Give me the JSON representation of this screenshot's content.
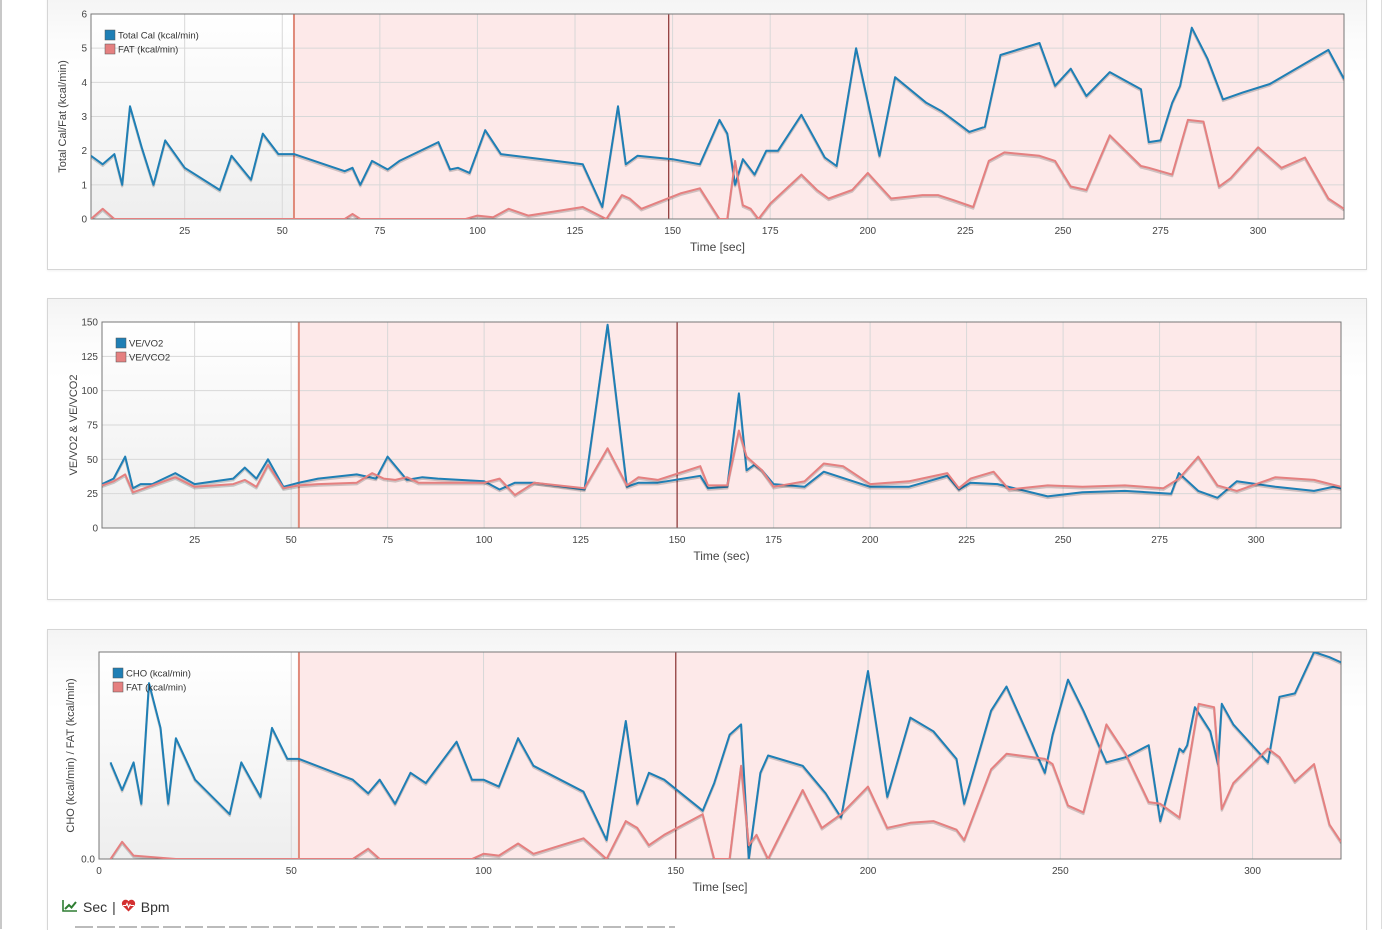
{
  "footer": {
    "sec_label": "Sec",
    "separator": "|",
    "bpm_label": "Bpm",
    "sec_icon": "trend-line-icon",
    "bpm_icon": "heart-pulse-icon"
  },
  "colors": {
    "blue": "#1f7fb5",
    "red": "#e58080",
    "zone_fill": "#fde9e9",
    "rest_fill": "#eeeeee",
    "zone_border": "#e08a7a",
    "marker": "#8a3030",
    "grid": "#d8d8d8"
  },
  "chart_data": [
    {
      "type": "line",
      "xlabel": "Time [sec]",
      "ylabel": "Total Cal/Fat (kcal/min)",
      "xlim": [
        1,
        322
      ],
      "ylim": [
        0,
        6
      ],
      "x_ticks": [
        25,
        50,
        75,
        100,
        125,
        150,
        175,
        200,
        225,
        250,
        275,
        300
      ],
      "y_ticks": [
        0,
        1,
        2,
        3,
        4,
        5,
        6
      ],
      "y_tick_labels": [
        "0",
        "1",
        "2",
        "3",
        "4",
        "5",
        "6"
      ],
      "legend_position": "top-left",
      "rest_zone": [
        1,
        53
      ],
      "exercise_zone_start": 53,
      "marker_x": 149,
      "series": [
        {
          "name": "Total Cal (kcal/min)",
          "color": "#1f7fb5",
          "x": [
            1,
            4,
            7,
            9,
            11,
            14,
            17,
            20,
            25,
            34,
            37,
            42,
            45,
            49,
            53,
            66,
            68,
            70,
            73,
            77,
            80,
            90,
            93,
            95,
            98,
            102,
            106,
            113,
            127,
            132,
            136,
            138,
            141,
            150,
            157,
            162,
            164,
            166,
            168,
            171,
            174,
            177,
            183,
            189,
            192,
            197,
            203,
            207,
            215,
            219,
            226,
            230,
            234,
            244,
            248,
            252,
            256,
            262,
            270,
            272,
            275,
            278,
            280,
            283,
            287,
            291,
            296,
            303,
            312,
            318,
            322
          ],
          "y": [
            1.85,
            1.6,
            1.9,
            1.0,
            3.3,
            2.1,
            1.0,
            2.3,
            1.5,
            0.85,
            1.85,
            1.15,
            2.5,
            1.9,
            1.9,
            1.4,
            1.5,
            1.0,
            1.7,
            1.45,
            1.7,
            2.25,
            1.45,
            1.5,
            1.35,
            2.6,
            1.9,
            1.8,
            1.6,
            0.35,
            3.3,
            1.6,
            1.85,
            1.75,
            1.6,
            2.9,
            2.5,
            1.0,
            1.75,
            1.3,
            2.0,
            2.0,
            3.05,
            1.8,
            1.55,
            5.0,
            1.85,
            4.15,
            3.4,
            3.15,
            2.55,
            2.7,
            4.8,
            5.15,
            3.9,
            4.4,
            3.6,
            4.3,
            3.8,
            2.25,
            2.3,
            3.4,
            3.9,
            5.6,
            4.7,
            3.5,
            3.7,
            3.95,
            4.55,
            4.95,
            4.1
          ]
        },
        {
          "name": "FAT (kcal/min)",
          "color": "#e58080",
          "x": [
            1,
            4,
            7,
            11,
            20,
            30,
            45,
            53,
            60,
            66,
            68,
            70,
            75,
            90,
            97,
            100,
            104,
            108,
            113,
            127,
            133,
            137,
            139,
            142,
            152,
            157,
            162,
            164,
            166,
            167,
            168,
            170,
            172,
            175,
            183,
            187,
            190,
            196,
            200,
            206,
            214,
            218,
            222,
            227,
            231,
            235,
            244,
            248,
            252,
            256,
            262,
            270,
            272,
            278,
            282,
            286,
            290,
            293,
            300,
            306,
            312,
            318,
            322
          ],
          "y": [
            0.0,
            0.3,
            0.0,
            0.0,
            0.0,
            0.0,
            0.0,
            0.0,
            0.0,
            0.0,
            0.15,
            0.0,
            0.0,
            0.0,
            0.0,
            0.1,
            0.05,
            0.3,
            0.1,
            0.35,
            0.0,
            0.7,
            0.6,
            0.3,
            0.75,
            0.9,
            0.0,
            0.0,
            1.7,
            1.0,
            0.4,
            0.3,
            0.0,
            0.45,
            1.3,
            0.85,
            0.6,
            0.85,
            1.35,
            0.6,
            0.7,
            0.7,
            0.55,
            0.35,
            1.7,
            1.95,
            1.85,
            1.7,
            0.95,
            0.85,
            2.45,
            1.55,
            1.5,
            1.3,
            2.9,
            2.85,
            0.95,
            1.2,
            2.1,
            1.5,
            1.8,
            0.6,
            0.3
          ]
        }
      ]
    },
    {
      "type": "line",
      "xlabel": "Time (sec)",
      "ylabel": "VE/VO2 & VE/VCO2",
      "xlim": [
        1,
        322
      ],
      "ylim": [
        0,
        150
      ],
      "x_ticks": [
        25,
        50,
        75,
        100,
        125,
        150,
        175,
        200,
        225,
        250,
        275,
        300
      ],
      "y_ticks": [
        0,
        25,
        50,
        75,
        100,
        125,
        150
      ],
      "y_tick_labels": [
        "0",
        "25",
        "50",
        "75",
        "100",
        "125",
        "150"
      ],
      "legend_position": "top-left",
      "rest_zone": [
        1,
        52
      ],
      "exercise_zone_start": 52,
      "marker_x": 150,
      "series": [
        {
          "name": "VE/VO2",
          "color": "#1f7fb5",
          "x": [
            1,
            4,
            7,
            9,
            11,
            14,
            20,
            25,
            35,
            38,
            41,
            44,
            48,
            52,
            57,
            67,
            72,
            75,
            80,
            84,
            88,
            100,
            104,
            108,
            113,
            126,
            132,
            137,
            140,
            145,
            156,
            158,
            163,
            166,
            168,
            170,
            172,
            175,
            183,
            188,
            200,
            210,
            220,
            223,
            226,
            233,
            246,
            255,
            266,
            278,
            280,
            285,
            290,
            295,
            305,
            315,
            320,
            322
          ],
          "y": [
            32,
            36,
            52,
            29,
            32,
            32,
            40,
            32,
            36,
            44,
            36,
            50,
            30,
            33,
            36,
            39,
            36,
            52,
            35,
            37,
            36,
            34,
            28,
            33,
            33,
            28,
            148,
            30,
            33,
            33,
            38,
            29,
            30,
            98,
            42,
            46,
            42,
            32,
            30,
            41,
            30,
            30,
            38,
            28,
            33,
            32,
            23,
            26,
            27,
            25,
            40,
            27,
            22,
            34,
            30,
            27,
            30,
            29
          ]
        },
        {
          "name": "VE/VCO2",
          "color": "#e58080",
          "x": [
            1,
            4,
            7,
            9,
            14,
            20,
            25,
            35,
            38,
            41,
            44,
            48,
            52,
            57,
            67,
            71,
            74,
            77,
            80,
            83,
            100,
            104,
            108,
            113,
            126,
            132,
            137,
            140,
            145,
            156,
            158,
            163,
            166,
            168,
            170,
            172,
            175,
            183,
            188,
            193,
            200,
            210,
            220,
            223,
            226,
            232,
            236,
            246,
            255,
            266,
            276,
            280,
            285,
            290,
            295,
            305,
            315,
            322
          ],
          "y": [
            31,
            34,
            39,
            26,
            31,
            37,
            30,
            32,
            35,
            30,
            46,
            29,
            31,
            32,
            33,
            40,
            36,
            35,
            37,
            33,
            33,
            36,
            24,
            33,
            29,
            58,
            31,
            37,
            35,
            45,
            31,
            31,
            71,
            52,
            47,
            42,
            30,
            34,
            47,
            45,
            32,
            34,
            40,
            29,
            36,
            41,
            28,
            31,
            30,
            31,
            29,
            36,
            52,
            31,
            27,
            37,
            35,
            30
          ]
        }
      ]
    },
    {
      "type": "line",
      "xlabel": "Time [sec]",
      "ylabel": "CHO (kcal/min) / FAT (kcal/min)",
      "xlim": [
        0,
        323
      ],
      "ylim": [
        0,
        6
      ],
      "x_ticks": [
        0,
        50,
        100,
        150,
        200,
        250,
        300
      ],
      "y_ticks": [
        0
      ],
      "y_tick_labels": [
        "0.0"
      ],
      "legend_position": "top-left",
      "rest_zone": [
        0,
        52
      ],
      "exercise_zone_start": 52,
      "marker_x": 150,
      "series": [
        {
          "name": "CHO (kcal/min)",
          "color": "#1f7fb5",
          "x": [
            3,
            6,
            9,
            11,
            13,
            16,
            18,
            20,
            25,
            34,
            37,
            42,
            45,
            49,
            52,
            66,
            70,
            73,
            77,
            81,
            85,
            93,
            97,
            100,
            104,
            109,
            113,
            126,
            132,
            137,
            140,
            143,
            147,
            157,
            160,
            164,
            167,
            169,
            172,
            174,
            183,
            189,
            193,
            200,
            205,
            211,
            217,
            223,
            225,
            232,
            236,
            246,
            248,
            252,
            256,
            262,
            267,
            273,
            276,
            281,
            282,
            283,
            285,
            289,
            291,
            292,
            295,
            304,
            307,
            311,
            316,
            320,
            323
          ],
          "y": [
            2.8,
            2.0,
            2.8,
            1.6,
            5.1,
            3.8,
            1.6,
            3.5,
            2.3,
            1.3,
            2.8,
            1.8,
            3.8,
            2.9,
            2.9,
            2.3,
            1.9,
            2.3,
            1.6,
            2.5,
            2.2,
            3.4,
            2.3,
            2.3,
            2.1,
            3.5,
            2.7,
            1.95,
            0.55,
            4.0,
            1.6,
            2.5,
            2.3,
            1.4,
            2.2,
            3.6,
            3.9,
            0.0,
            2.5,
            3.0,
            2.7,
            1.9,
            1.2,
            5.45,
            1.8,
            4.1,
            3.7,
            2.9,
            1.6,
            4.3,
            5.0,
            2.5,
            3.6,
            5.2,
            4.3,
            2.8,
            2.95,
            3.3,
            1.1,
            3.2,
            3.1,
            3.3,
            4.4,
            3.7,
            2.75,
            4.5,
            3.9,
            2.8,
            4.7,
            4.8,
            6.0,
            5.85,
            5.7
          ]
        },
        {
          "name": "FAT (kcal/min)",
          "color": "#e58080",
          "x": [
            3,
            6,
            9,
            20,
            35,
            52,
            66,
            70,
            73,
            85,
            97,
            100,
            104,
            109,
            113,
            126,
            132,
            137,
            140,
            143,
            147,
            157,
            160,
            164,
            167,
            169,
            171,
            174,
            183,
            188,
            193,
            200,
            205,
            211,
            217,
            223,
            225,
            232,
            236,
            246,
            248,
            252,
            256,
            262,
            267,
            273,
            276,
            281,
            286,
            290,
            292,
            295,
            304,
            307,
            311,
            316,
            320,
            323
          ],
          "y": [
            0.0,
            0.5,
            0.1,
            0.0,
            0.0,
            0.0,
            0.0,
            0.3,
            0.0,
            0.0,
            0.0,
            0.15,
            0.1,
            0.45,
            0.15,
            0.6,
            0.0,
            1.1,
            0.9,
            0.4,
            0.7,
            1.3,
            0.0,
            0.0,
            2.7,
            0.4,
            0.7,
            0.0,
            2.0,
            0.9,
            1.3,
            2.1,
            0.9,
            1.05,
            1.1,
            0.85,
            0.55,
            2.6,
            3.05,
            2.9,
            2.75,
            1.55,
            1.35,
            3.9,
            3.05,
            1.65,
            1.6,
            1.2,
            4.5,
            4.4,
            1.45,
            2.2,
            3.2,
            2.95,
            2.25,
            2.75,
            1.0,
            0.5
          ]
        }
      ]
    }
  ]
}
